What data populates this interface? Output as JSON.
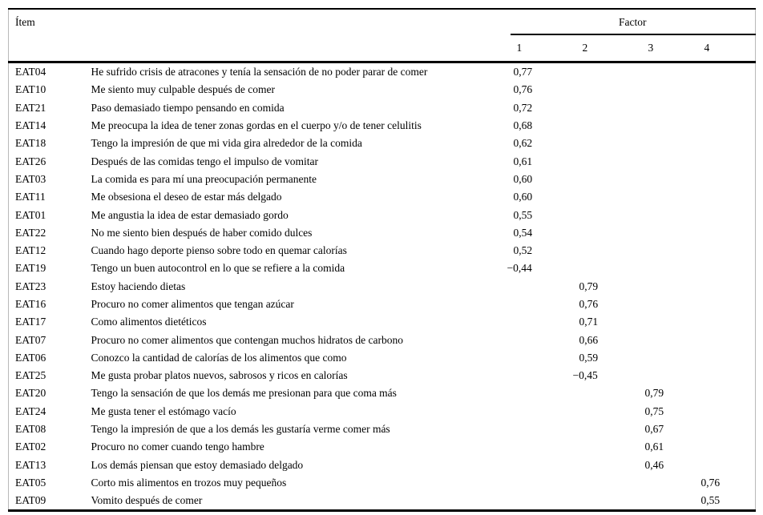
{
  "colors": {
    "background": "#ffffff",
    "text": "#000000",
    "rule": "#000000",
    "frame_gray": "#b9b9b9"
  },
  "table": {
    "item_header": "Ítem",
    "factor_header": "Factor",
    "factor_columns": [
      "1",
      "2",
      "3",
      "4"
    ],
    "rows": [
      {
        "code": "EAT04",
        "text": "He sufrido crisis de atracones y tenía la sensación de no poder parar de comer",
        "f1": "0,77",
        "f2": "",
        "f3": "",
        "f4": ""
      },
      {
        "code": "EAT10",
        "text": "Me siento muy culpable después de comer",
        "f1": "0,76",
        "f2": "",
        "f3": "",
        "f4": ""
      },
      {
        "code": "EAT21",
        "text": "Paso demasiado tiempo pensando en comida",
        "f1": "0,72",
        "f2": "",
        "f3": "",
        "f4": ""
      },
      {
        "code": "EAT14",
        "text": "Me preocupa la idea de tener zonas gordas en el cuerpo y/o de tener celulitis",
        "f1": "0,68",
        "f2": "",
        "f3": "",
        "f4": ""
      },
      {
        "code": "EAT18",
        "text": "Tengo la impresión de que mi vida gira alrededor de la comida",
        "f1": "0,62",
        "f2": "",
        "f3": "",
        "f4": ""
      },
      {
        "code": "EAT26",
        "text": "Después de las comidas tengo el impulso de vomitar",
        "f1": "0,61",
        "f2": "",
        "f3": "",
        "f4": ""
      },
      {
        "code": "EAT03",
        "text": "La comida es para mí una preocupación permanente",
        "f1": "0,60",
        "f2": "",
        "f3": "",
        "f4": ""
      },
      {
        "code": "EAT11",
        "text": "Me obsesiona el deseo de estar más delgado",
        "f1": "0,60",
        "f2": "",
        "f3": "",
        "f4": ""
      },
      {
        "code": "EAT01",
        "text": "Me angustia la idea de estar demasiado gordo",
        "f1": "0,55",
        "f2": "",
        "f3": "",
        "f4": ""
      },
      {
        "code": "EAT22",
        "text": "No me siento bien después de haber comido dulces",
        "f1": "0,54",
        "f2": "",
        "f3": "",
        "f4": ""
      },
      {
        "code": "EAT12",
        "text": "Cuando hago deporte pienso sobre todo en quemar calorías",
        "f1": "0,52",
        "f2": "",
        "f3": "",
        "f4": ""
      },
      {
        "code": "EAT19",
        "text": "Tengo un buen autocontrol en lo que se refiere a la comida",
        "f1": "−0,44",
        "f2": "",
        "f3": "",
        "f4": ""
      },
      {
        "code": "EAT23",
        "text": "Estoy haciendo dietas",
        "f1": "",
        "f2": "0,79",
        "f3": "",
        "f4": ""
      },
      {
        "code": "EAT16",
        "text": "Procuro no comer alimentos que tengan azúcar",
        "f1": "",
        "f2": "0,76",
        "f3": "",
        "f4": ""
      },
      {
        "code": "EAT17",
        "text": "Como alimentos dietéticos",
        "f1": "",
        "f2": "0,71",
        "f3": "",
        "f4": ""
      },
      {
        "code": "EAT07",
        "text": "Procuro no comer alimentos que contengan muchos hidratos de carbono",
        "f1": "",
        "f2": "0,66",
        "f3": "",
        "f4": ""
      },
      {
        "code": "EAT06",
        "text": "Conozco la cantidad de calorías de los alimentos que como",
        "f1": "",
        "f2": "0,59",
        "f3": "",
        "f4": ""
      },
      {
        "code": "EAT25",
        "text": "Me gusta probar platos nuevos, sabrosos y ricos en calorías",
        "f1": "",
        "f2": "−0,45",
        "f3": "",
        "f4": ""
      },
      {
        "code": "EAT20",
        "text": "Tengo la sensación de que los demás me presionan para que coma más",
        "f1": "",
        "f2": "",
        "f3": "0,79",
        "f4": ""
      },
      {
        "code": "EAT24",
        "text": "Me gusta tener el estómago vacío",
        "f1": "",
        "f2": "",
        "f3": "0,75",
        "f4": ""
      },
      {
        "code": "EAT08",
        "text": "Tengo la impresión de que a los demás les gustaría verme comer más",
        "f1": "",
        "f2": "",
        "f3": "0,67",
        "f4": ""
      },
      {
        "code": "EAT02",
        "text": "Procuro no comer cuando tengo hambre",
        "f1": "",
        "f2": "",
        "f3": "0,61",
        "f4": ""
      },
      {
        "code": "EAT13",
        "text": "Los demás piensan que estoy demasiado delgado",
        "f1": "",
        "f2": "",
        "f3": "0,46",
        "f4": ""
      },
      {
        "code": "EAT05",
        "text": "Corto mis alimentos en trozos muy pequeños",
        "f1": "",
        "f2": "",
        "f3": "",
        "f4": "0,76"
      },
      {
        "code": "EAT09",
        "text": "Vomito después de comer",
        "f1": "",
        "f2": "",
        "f3": "",
        "f4": "0,55"
      }
    ]
  }
}
